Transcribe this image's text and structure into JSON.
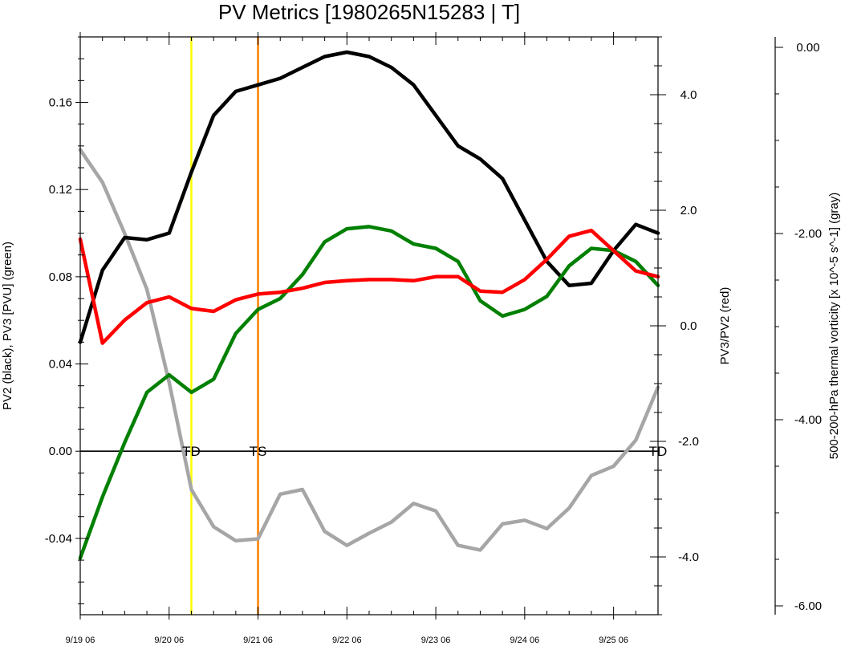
{
  "chart_data": {
    "type": "line",
    "title": "PV Metrics [1980265N15283 | T]",
    "x": [
      0,
      1,
      2,
      3,
      4,
      5,
      6,
      7,
      8,
      9,
      10,
      11,
      12,
      13,
      14,
      15,
      16,
      17,
      18,
      19,
      20,
      21,
      22,
      23,
      24,
      25,
      26
    ],
    "x_ticks": [
      {
        "pos": 0,
        "label": "9/19 06"
      },
      {
        "pos": 4,
        "label": "9/20 06"
      },
      {
        "pos": 8,
        "label": "9/21 06"
      },
      {
        "pos": 12,
        "label": "9/22 06"
      },
      {
        "pos": 16,
        "label": "9/23 06"
      },
      {
        "pos": 20,
        "label": "9/24 06"
      },
      {
        "pos": 24,
        "label": "9/25 06"
      }
    ],
    "xlim": [
      0,
      26
    ],
    "axes": {
      "left": {
        "label": "PV2 (black), PV3 [PVU] (green)",
        "range": [
          -0.075,
          0.19
        ],
        "ticks": [
          -0.04,
          0.0,
          0.04,
          0.08,
          0.12,
          0.16
        ],
        "tick_labels": [
          "-0.04",
          "0.00",
          "0.04",
          "0.08",
          "0.12",
          "0.16"
        ]
      },
      "right": {
        "label": "PV3/PV2 (red)",
        "range": [
          -5.0,
          5.0
        ],
        "ticks": [
          -4,
          -2,
          0,
          2,
          4
        ],
        "tick_labels": [
          "-4.0",
          "-2.0",
          "0.0",
          "2.0",
          "4.0"
        ]
      },
      "far_right": {
        "label": "500-200-hPa thermal vorticity [x 10^-5 s^-1] (gray)",
        "range": [
          -6.0,
          0.0
        ],
        "ticks": [
          -6,
          -4,
          -2,
          0
        ],
        "tick_labels": [
          "-6.00",
          "-4.00",
          "-2.00",
          "0.00"
        ]
      }
    },
    "series": [
      {
        "axis": "left",
        "color": "#000000",
        "values": [
          0.05,
          0.083,
          0.098,
          0.097,
          0.1,
          0.128,
          0.154,
          0.165,
          0.168,
          0.171,
          0.176,
          0.181,
          0.183,
          0.181,
          0.176,
          0.168,
          0.154,
          0.14,
          0.134,
          0.125,
          0.106,
          0.087,
          0.076,
          0.077,
          0.092,
          0.104,
          0.1
        ]
      },
      {
        "axis": "left",
        "color": "#008000",
        "values": [
          -0.049,
          -0.021,
          0.004,
          0.027,
          0.035,
          0.027,
          0.033,
          0.054,
          0.065,
          0.07,
          0.081,
          0.096,
          0.102,
          0.103,
          0.101,
          0.095,
          0.093,
          0.087,
          0.069,
          0.062,
          0.065,
          0.071,
          0.085,
          0.093,
          0.092,
          0.087,
          0.076
        ]
      },
      {
        "axis": "right",
        "color": "#ff0000",
        "values": [
          1.5,
          -0.3,
          0.1,
          0.4,
          0.5,
          0.3,
          0.25,
          0.45,
          0.55,
          0.58,
          0.65,
          0.75,
          0.78,
          0.8,
          0.8,
          0.78,
          0.85,
          0.85,
          0.6,
          0.58,
          0.8,
          1.15,
          1.55,
          1.65,
          1.3,
          0.95,
          0.85
        ]
      },
      {
        "axis": "far_right",
        "color": "#a6a6a6",
        "values": [
          -1.1,
          -1.45,
          -2.0,
          -2.6,
          -3.6,
          -4.75,
          -5.15,
          -5.3,
          -5.28,
          -4.8,
          -4.75,
          -5.2,
          -5.35,
          -5.22,
          -5.1,
          -4.9,
          -4.98,
          -5.35,
          -5.4,
          -5.12,
          -5.08,
          -5.17,
          -4.95,
          -4.6,
          -4.5,
          -4.22,
          -3.65
        ]
      }
    ],
    "zero_line": {
      "axis": "left",
      "value": 0.0
    },
    "vlines": [
      {
        "pos": 5,
        "color": "#ffff00",
        "label": "TD"
      },
      {
        "pos": 8,
        "color": "#ff8000",
        "label": "TS"
      }
    ],
    "end_label": {
      "pos": 26,
      "label": "TD"
    }
  }
}
